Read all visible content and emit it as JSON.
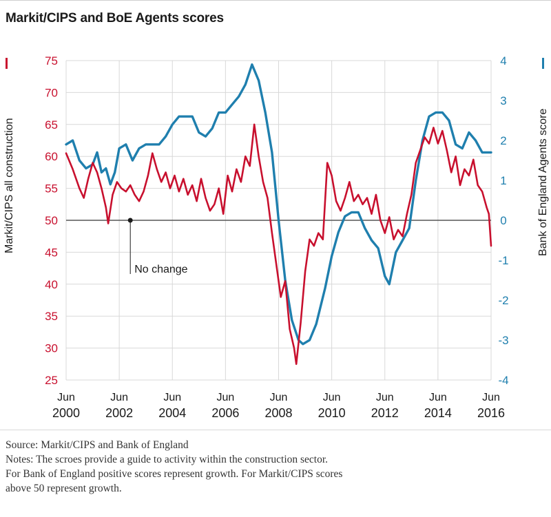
{
  "title": "Markit/CIPS and BoE Agents scores",
  "footer": {
    "source": "Source: Markit/CIPS and Bank of England",
    "notes_line1": "Notes: The scroes provide a guide to activity within the construction sector.",
    "notes_line2": "For Bank of England positive scores represent growth. For Markit/CIPS scores",
    "notes_line3": "above 50 represent growth."
  },
  "colors": {
    "markit": "#c8102e",
    "boe": "#1f7fae",
    "grid": "#d8d8d8",
    "reference_line": "#555555"
  },
  "chart_data": {
    "type": "line",
    "title": "Markit/CIPS and BoE Agents scores",
    "xlabel": "",
    "x_ticks": [
      {
        "month": "Jun",
        "year": "2000"
      },
      {
        "month": "Jun",
        "year": "2002"
      },
      {
        "month": "Jun",
        "year": "2004"
      },
      {
        "month": "Jun",
        "year": "2006"
      },
      {
        "month": "Jun",
        "year": "2008"
      },
      {
        "month": "Jun",
        "year": "2010"
      },
      {
        "month": "Jun",
        "year": "2012"
      },
      {
        "month": "Jun",
        "year": "2014"
      },
      {
        "month": "Jun",
        "year": "2016"
      }
    ],
    "xlim": [
      "2000-06",
      "2016-06"
    ],
    "y_left": {
      "label": "Markit/CIPS all construction",
      "lim": [
        25,
        75
      ],
      "ticks": [
        "75",
        "70",
        "65",
        "60",
        "55",
        "50",
        "45",
        "40",
        "35",
        "30",
        "25"
      ]
    },
    "y_right": {
      "label": "Bank of England Agents score",
      "lim": [
        -4,
        4
      ],
      "ticks": [
        "4",
        "3",
        "2",
        "1",
        "0",
        "-1",
        "-2",
        "-3",
        "-4"
      ]
    },
    "grid": true,
    "reference_line": {
      "axis": "left",
      "value": 50
    },
    "annotation": {
      "text": "No change",
      "x": "2002-11",
      "y": 50
    },
    "series": [
      {
        "axis": "left",
        "color": "#c8102e",
        "points": [
          [
            "2000-06",
            60.5
          ],
          [
            "2000-09",
            58.0
          ],
          [
            "2000-12",
            55.0
          ],
          [
            "2001-02",
            53.5
          ],
          [
            "2001-04",
            56.5
          ],
          [
            "2001-06",
            59.0
          ],
          [
            "2001-08",
            57.5
          ],
          [
            "2001-10",
            55.0
          ],
          [
            "2001-12",
            52.0
          ],
          [
            "2002-01",
            49.5
          ],
          [
            "2002-03",
            54.0
          ],
          [
            "2002-05",
            56.0
          ],
          [
            "2002-07",
            55.0
          ],
          [
            "2002-09",
            54.5
          ],
          [
            "2002-11",
            55.5
          ],
          [
            "2003-01",
            54.0
          ],
          [
            "2003-03",
            53.0
          ],
          [
            "2003-05",
            54.5
          ],
          [
            "2003-07",
            57.0
          ],
          [
            "2003-09",
            60.5
          ],
          [
            "2003-11",
            58.0
          ],
          [
            "2004-01",
            56.0
          ],
          [
            "2004-03",
            57.5
          ],
          [
            "2004-05",
            55.0
          ],
          [
            "2004-07",
            57.0
          ],
          [
            "2004-09",
            54.5
          ],
          [
            "2004-11",
            56.5
          ],
          [
            "2005-01",
            54.0
          ],
          [
            "2005-03",
            55.5
          ],
          [
            "2005-05",
            53.0
          ],
          [
            "2005-07",
            56.5
          ],
          [
            "2005-09",
            53.5
          ],
          [
            "2005-11",
            51.5
          ],
          [
            "2006-01",
            52.5
          ],
          [
            "2006-03",
            55.0
          ],
          [
            "2006-05",
            51.0
          ],
          [
            "2006-07",
            57.0
          ],
          [
            "2006-09",
            54.5
          ],
          [
            "2006-11",
            58.0
          ],
          [
            "2007-01",
            56.0
          ],
          [
            "2007-03",
            60.0
          ],
          [
            "2007-05",
            58.5
          ],
          [
            "2007-07",
            65.0
          ],
          [
            "2007-09",
            60.0
          ],
          [
            "2007-11",
            56.0
          ],
          [
            "2008-01",
            53.5
          ],
          [
            "2008-03",
            48.0
          ],
          [
            "2008-05",
            43.0
          ],
          [
            "2008-07",
            38.0
          ],
          [
            "2008-09",
            40.5
          ],
          [
            "2008-11",
            33.0
          ],
          [
            "2009-01",
            30.0
          ],
          [
            "2009-02",
            27.5
          ],
          [
            "2009-04",
            34.0
          ],
          [
            "2009-06",
            42.0
          ],
          [
            "2009-08",
            47.0
          ],
          [
            "2009-10",
            46.0
          ],
          [
            "2009-12",
            48.0
          ],
          [
            "2010-02",
            47.0
          ],
          [
            "2010-04",
            59.0
          ],
          [
            "2010-06",
            57.0
          ],
          [
            "2010-08",
            53.0
          ],
          [
            "2010-10",
            51.5
          ],
          [
            "2010-12",
            53.5
          ],
          [
            "2011-02",
            56.0
          ],
          [
            "2011-04",
            53.0
          ],
          [
            "2011-06",
            54.0
          ],
          [
            "2011-08",
            52.5
          ],
          [
            "2011-10",
            53.5
          ],
          [
            "2011-12",
            51.0
          ],
          [
            "2012-02",
            54.0
          ],
          [
            "2012-04",
            50.0
          ],
          [
            "2012-06",
            48.0
          ],
          [
            "2012-08",
            50.5
          ],
          [
            "2012-10",
            47.0
          ],
          [
            "2012-12",
            48.5
          ],
          [
            "2013-02",
            47.5
          ],
          [
            "2013-04",
            51.0
          ],
          [
            "2013-06",
            54.0
          ],
          [
            "2013-08",
            59.0
          ],
          [
            "2013-10",
            61.0
          ],
          [
            "2013-12",
            63.0
          ],
          [
            "2014-02",
            62.0
          ],
          [
            "2014-04",
            64.5
          ],
          [
            "2014-06",
            62.0
          ],
          [
            "2014-08",
            64.0
          ],
          [
            "2014-10",
            61.0
          ],
          [
            "2014-12",
            57.5
          ],
          [
            "2015-02",
            60.0
          ],
          [
            "2015-04",
            55.5
          ],
          [
            "2015-06",
            58.0
          ],
          [
            "2015-08",
            57.0
          ],
          [
            "2015-10",
            59.5
          ],
          [
            "2015-12",
            55.5
          ],
          [
            "2016-02",
            54.5
          ],
          [
            "2016-04",
            52.0
          ],
          [
            "2016-05",
            51.0
          ],
          [
            "2016-06",
            46.0
          ]
        ]
      },
      {
        "axis": "right",
        "color": "#1f7fae",
        "points": [
          [
            "2000-06",
            1.9
          ],
          [
            "2000-09",
            2.0
          ],
          [
            "2000-12",
            1.5
          ],
          [
            "2001-03",
            1.3
          ],
          [
            "2001-06",
            1.4
          ],
          [
            "2001-08",
            1.7
          ],
          [
            "2001-10",
            1.2
          ],
          [
            "2001-12",
            1.3
          ],
          [
            "2002-02",
            0.9
          ],
          [
            "2002-04",
            1.2
          ],
          [
            "2002-06",
            1.8
          ],
          [
            "2002-09",
            1.9
          ],
          [
            "2002-12",
            1.5
          ],
          [
            "2003-03",
            1.8
          ],
          [
            "2003-06",
            1.9
          ],
          [
            "2003-09",
            1.9
          ],
          [
            "2003-12",
            1.9
          ],
          [
            "2004-03",
            2.1
          ],
          [
            "2004-06",
            2.4
          ],
          [
            "2004-09",
            2.6
          ],
          [
            "2004-12",
            2.6
          ],
          [
            "2005-03",
            2.6
          ],
          [
            "2005-06",
            2.2
          ],
          [
            "2005-09",
            2.1
          ],
          [
            "2005-12",
            2.3
          ],
          [
            "2006-03",
            2.7
          ],
          [
            "2006-06",
            2.7
          ],
          [
            "2006-09",
            2.9
          ],
          [
            "2006-12",
            3.1
          ],
          [
            "2007-03",
            3.4
          ],
          [
            "2007-06",
            3.9
          ],
          [
            "2007-09",
            3.5
          ],
          [
            "2007-12",
            2.7
          ],
          [
            "2008-03",
            1.7
          ],
          [
            "2008-06",
            0.0
          ],
          [
            "2008-09",
            -1.5
          ],
          [
            "2008-12",
            -2.5
          ],
          [
            "2009-03",
            -3.0
          ],
          [
            "2009-05",
            -3.1
          ],
          [
            "2009-08",
            -3.0
          ],
          [
            "2009-11",
            -2.6
          ],
          [
            "2010-03",
            -1.7
          ],
          [
            "2010-06",
            -0.9
          ],
          [
            "2010-09",
            -0.3
          ],
          [
            "2010-12",
            0.1
          ],
          [
            "2011-03",
            0.2
          ],
          [
            "2011-06",
            0.2
          ],
          [
            "2011-09",
            -0.2
          ],
          [
            "2011-12",
            -0.5
          ],
          [
            "2012-03",
            -0.7
          ],
          [
            "2012-06",
            -1.4
          ],
          [
            "2012-08",
            -1.6
          ],
          [
            "2012-11",
            -0.8
          ],
          [
            "2013-02",
            -0.5
          ],
          [
            "2013-05",
            -0.2
          ],
          [
            "2013-08",
            1.0
          ],
          [
            "2013-11",
            2.0
          ],
          [
            "2014-02",
            2.6
          ],
          [
            "2014-05",
            2.7
          ],
          [
            "2014-08",
            2.7
          ],
          [
            "2014-11",
            2.5
          ],
          [
            "2015-02",
            1.9
          ],
          [
            "2015-05",
            1.8
          ],
          [
            "2015-08",
            2.2
          ],
          [
            "2015-11",
            2.0
          ],
          [
            "2016-02",
            1.7
          ],
          [
            "2016-06",
            1.7
          ]
        ]
      }
    ]
  }
}
